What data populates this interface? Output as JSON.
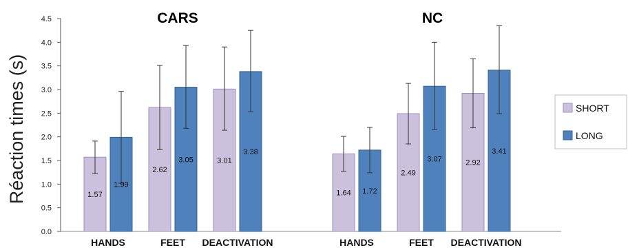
{
  "chart_data": {
    "type": "bar",
    "ylabel": "Réaction times (s)",
    "ylim": [
      0,
      4.5
    ],
    "yticks": [
      0.0,
      0.5,
      1.0,
      1.5,
      2.0,
      2.5,
      3.0,
      3.5,
      4.0,
      4.5
    ],
    "ytick_labels": [
      "0.0",
      "0.5",
      "1.0",
      "1.5",
      "2.0",
      "2.5",
      "3.0",
      "3.5",
      "4.0",
      "4.5"
    ],
    "grid": false,
    "legend_position": "right",
    "legend": [
      {
        "name": "SHORT",
        "color": "#ccc1dd"
      },
      {
        "name": "LONG",
        "color": "#4f81bd"
      }
    ],
    "panels": [
      {
        "title": "CARS",
        "categories": [
          "HANDS",
          "FEET",
          "DEACTIVATION"
        ],
        "series": [
          {
            "name": "SHORT",
            "values": [
              1.57,
              2.62,
              3.01
            ],
            "labels": [
              "1.57",
              "2.62",
              "3.01"
            ],
            "error_low": [
              1.22,
              1.73,
              2.14
            ],
            "error_high": [
              1.91,
              3.51,
              3.9
            ]
          },
          {
            "name": "LONG",
            "values": [
              1.99,
              3.05,
              3.38
            ],
            "labels": [
              "1.99",
              "3.05",
              "3.38"
            ],
            "error_low": [
              1.02,
              2.18,
              2.53
            ],
            "error_high": [
              2.96,
              3.93,
              4.25
            ]
          }
        ]
      },
      {
        "title": "NC",
        "categories": [
          "HANDS",
          "FEET",
          "DEACTIVATION"
        ],
        "series": [
          {
            "name": "SHORT",
            "values": [
              1.64,
              2.49,
              2.92
            ],
            "labels": [
              "1.64",
              "2.49",
              "2.92"
            ],
            "error_low": [
              1.27,
              1.85,
              2.19
            ],
            "error_high": [
              2.01,
              3.13,
              3.65
            ]
          },
          {
            "name": "LONG",
            "values": [
              1.72,
              3.07,
              3.41
            ],
            "labels": [
              "1.72",
              "3.07",
              "3.41"
            ],
            "error_low": [
              1.24,
              2.15,
              2.49
            ],
            "error_high": [
              2.2,
              4.0,
              4.35
            ]
          }
        ]
      }
    ]
  }
}
